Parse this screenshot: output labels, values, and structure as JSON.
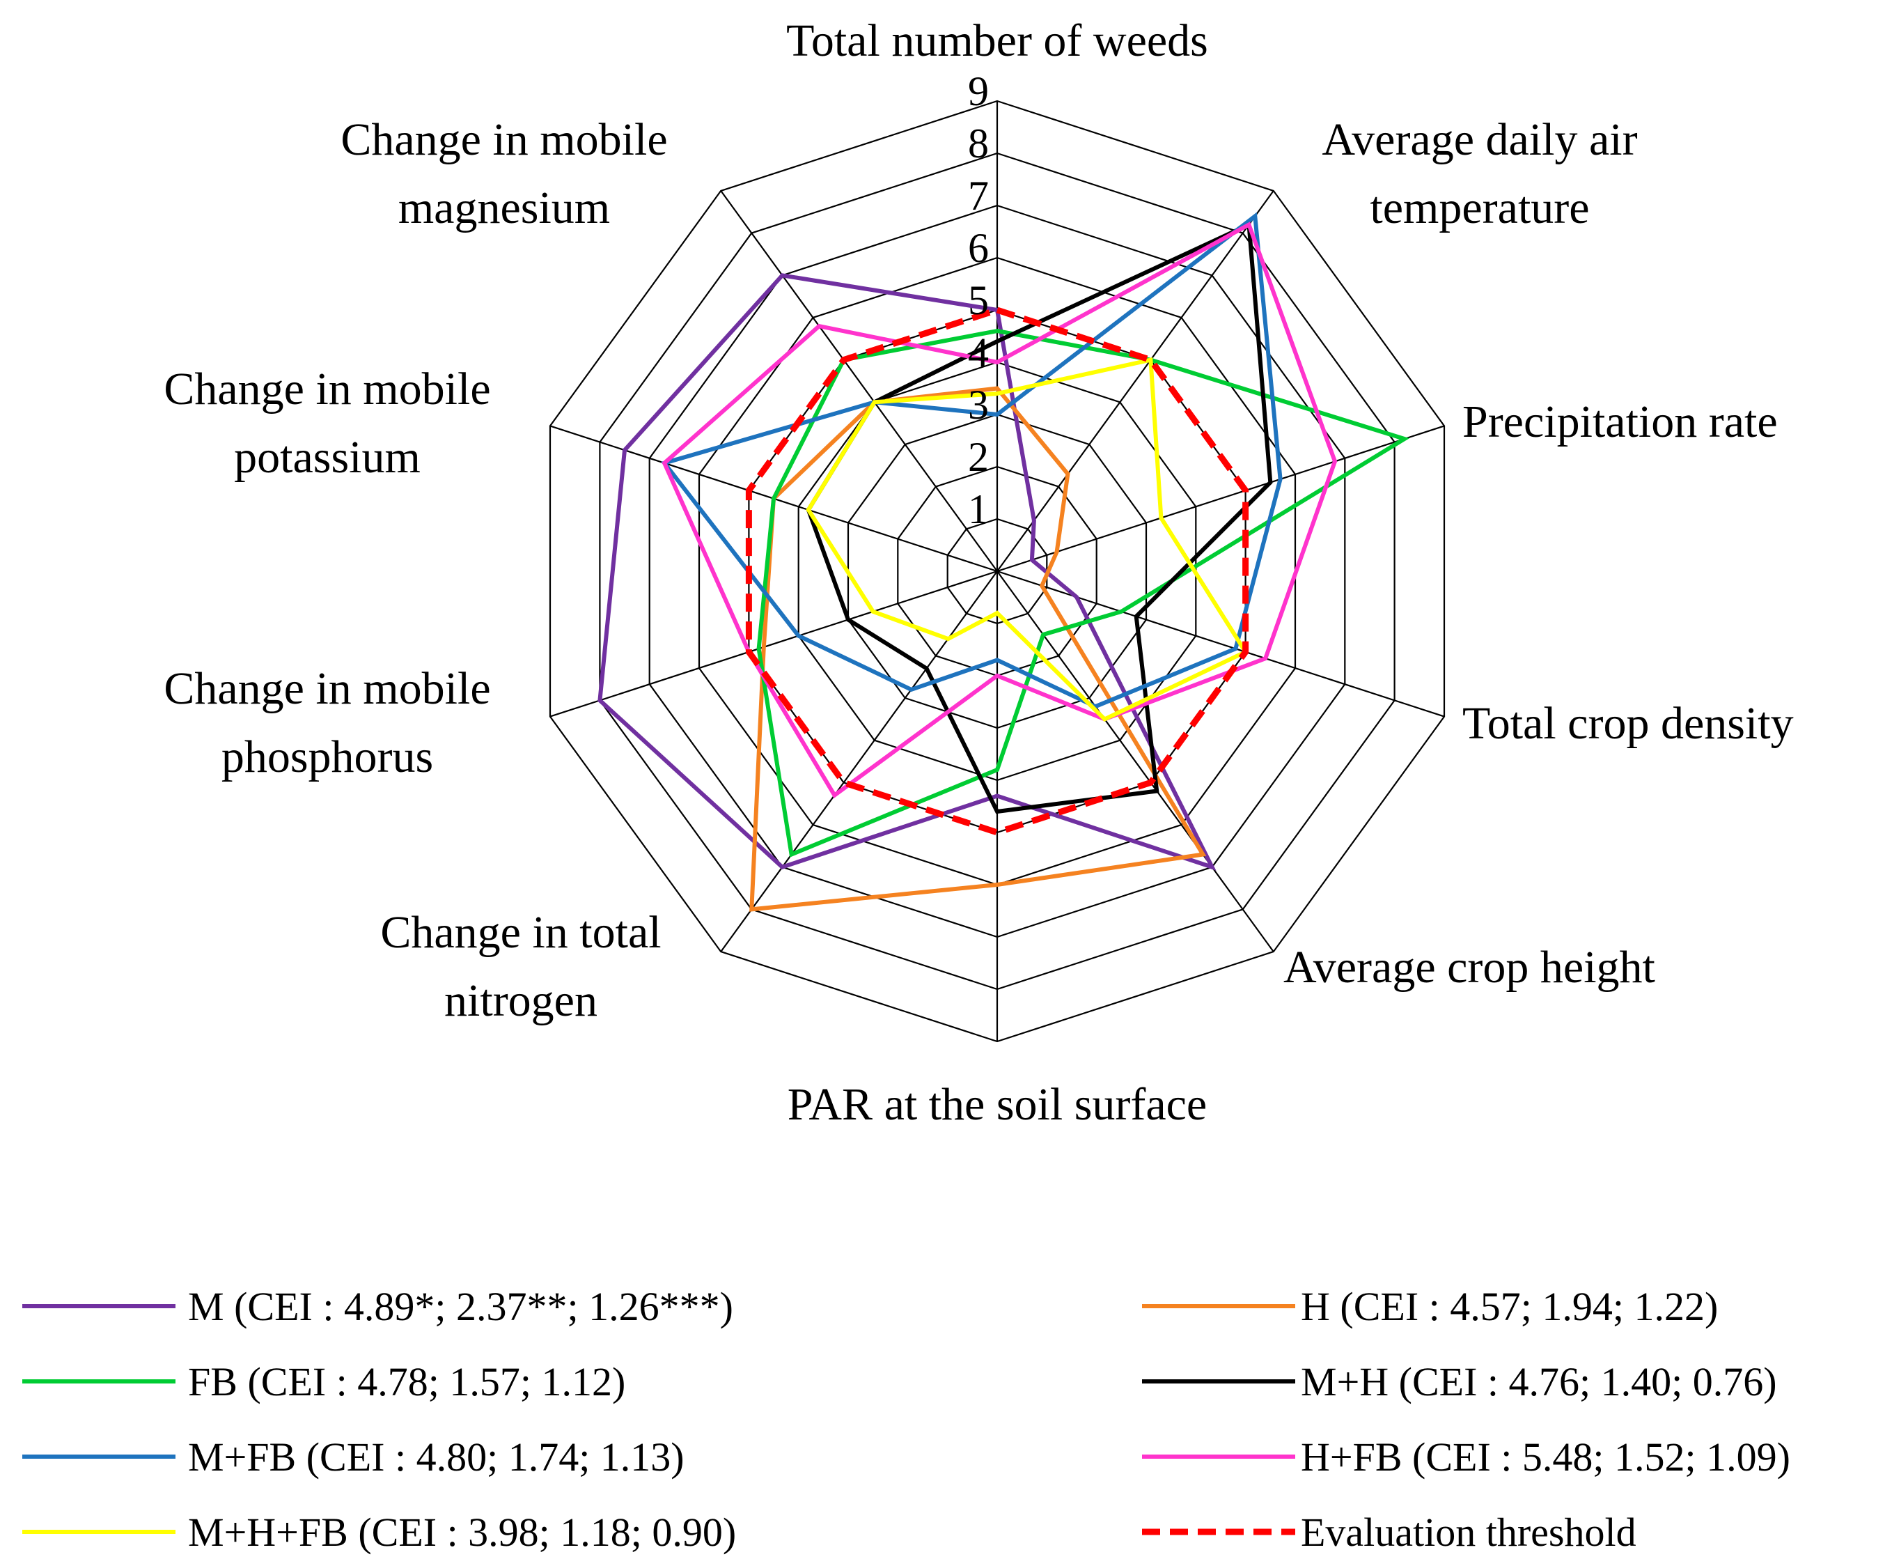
{
  "chart_data": {
    "type": "radar",
    "axes": [
      {
        "label_lines": [
          "Total number of weeds"
        ]
      },
      {
        "label_lines": [
          "Average daily air",
          "temperature"
        ]
      },
      {
        "label_lines": [
          "Precipitation rate"
        ]
      },
      {
        "label_lines": [
          "Total crop density"
        ]
      },
      {
        "label_lines": [
          "Average crop height"
        ]
      },
      {
        "label_lines": [
          "PAR at the soil surface"
        ]
      },
      {
        "label_lines": [
          "Change in total",
          "nitrogen"
        ]
      },
      {
        "label_lines": [
          "Change in mobile",
          "phosphorus"
        ]
      },
      {
        "label_lines": [
          "Change in mobile",
          "potassium"
        ]
      },
      {
        "label_lines": [
          "Change in mobile",
          "magnesium"
        ]
      }
    ],
    "rlim": [
      0,
      9
    ],
    "ticks": [
      1,
      2,
      3,
      4,
      5,
      6,
      7,
      8,
      9
    ],
    "series": [
      {
        "name": "M",
        "legend": "M (CEI : 4.89*; 2.37**; 1.26***)",
        "color": "#7030A0",
        "dashed": false,
        "values": [
          5.0,
          1.2,
          0.7,
          1.6,
          7.0,
          4.3,
          7.0,
          8.0,
          7.5,
          7.0
        ]
      },
      {
        "name": "H",
        "legend": "H (CEI : 4.57; 1.94; 1.22)",
        "color": "#F58220",
        "dashed": false,
        "values": [
          3.5,
          2.3,
          1.2,
          0.9,
          6.7,
          6.0,
          8.0,
          4.7,
          4.5,
          4.0
        ]
      },
      {
        "name": "FB",
        "legend": "FB (CEI : 4.78; 1.57; 1.12)",
        "color": "#00CC33",
        "dashed": false,
        "values": [
          4.6,
          5.0,
          8.2,
          2.5,
          1.5,
          3.8,
          6.7,
          4.8,
          4.5,
          5.0
        ]
      },
      {
        "name": "M+H",
        "legend": "M+H (CEI : 4.76; 1.40; 0.76)",
        "color": "#000000",
        "dashed": false,
        "values": [
          4.4,
          8.2,
          5.5,
          2.8,
          5.2,
          4.6,
          2.3,
          3.0,
          3.8,
          4.0
        ]
      },
      {
        "name": "M+FB",
        "legend": "M+FB (CEI : 4.80; 1.74; 1.13)",
        "color": "#1E73BE",
        "dashed": false,
        "values": [
          3.0,
          8.4,
          5.7,
          4.8,
          3.2,
          1.7,
          2.8,
          4.0,
          6.7,
          4.0
        ]
      },
      {
        "name": "H+FB",
        "legend": "H+FB (CEI : 5.48; 1.52; 1.09)",
        "color": "#FF33CC",
        "dashed": false,
        "values": [
          4.0,
          8.2,
          6.8,
          5.4,
          3.5,
          2.0,
          5.3,
          5.0,
          6.7,
          5.8
        ]
      },
      {
        "name": "M+H+FB",
        "legend": "M+H+FB (CEI : 3.98; 1.18; 0.90)",
        "color": "#FFFF00",
        "dashed": false,
        "values": [
          3.4,
          5.0,
          3.3,
          5.0,
          3.5,
          0.8,
          1.6,
          2.5,
          3.8,
          4.0
        ]
      },
      {
        "name": "Evaluation threshold",
        "legend": "Evaluation threshold",
        "color": "#FF0000",
        "dashed": true,
        "values": [
          5,
          5,
          5,
          5,
          5,
          5,
          5,
          5,
          5,
          5
        ]
      }
    ]
  }
}
